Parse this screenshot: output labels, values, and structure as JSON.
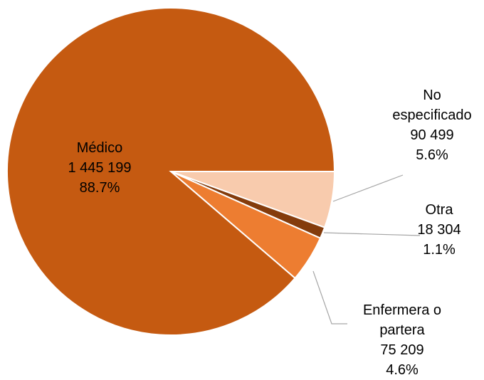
{
  "chart_data": {
    "type": "pie",
    "categories": [
      "No especificado",
      "Otra",
      "Enfermera o partera",
      "Médico"
    ],
    "values": [
      90499,
      18304,
      75209,
      1445199
    ],
    "value_labels": [
      "90 499",
      "18 304",
      "75 209",
      "1 445 199"
    ],
    "percentages": [
      5.6,
      1.1,
      4.6,
      88.7
    ],
    "percentage_labels": [
      "5.6%",
      "1.1%",
      "4.6%",
      "88.7%"
    ],
    "colors": [
      "#f8cbad",
      "#843c0c",
      "#ed7d31",
      "#c55a11"
    ]
  }
}
